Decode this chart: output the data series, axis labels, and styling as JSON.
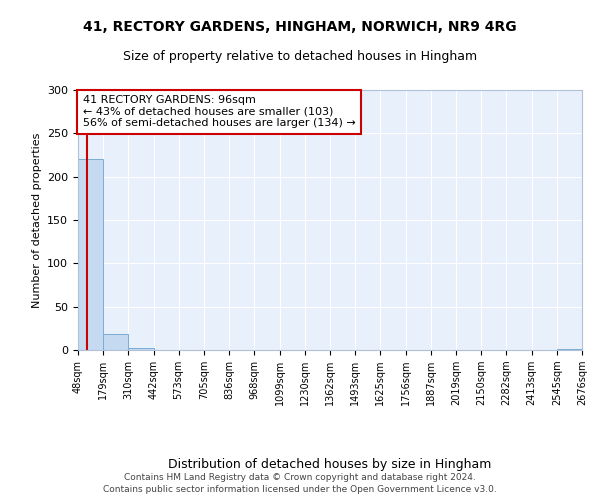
{
  "title_line1": "41, RECTORY GARDENS, HINGHAM, NORWICH, NR9 4RG",
  "title_line2": "Size of property relative to detached houses in Hingham",
  "xlabel": "Distribution of detached houses by size in Hingham",
  "ylabel": "Number of detached properties",
  "bin_labels": [
    "48sqm",
    "179sqm",
    "310sqm",
    "442sqm",
    "573sqm",
    "705sqm",
    "836sqm",
    "968sqm",
    "1099sqm",
    "1230sqm",
    "1362sqm",
    "1493sqm",
    "1625sqm",
    "1756sqm",
    "1887sqm",
    "2019sqm",
    "2150sqm",
    "2282sqm",
    "2413sqm",
    "2545sqm",
    "2676sqm"
  ],
  "bar_values": [
    220,
    18,
    2,
    0,
    0,
    0,
    0,
    0,
    0,
    0,
    0,
    0,
    0,
    0,
    0,
    0,
    0,
    0,
    0,
    1
  ],
  "bar_color": "#c5d9f0",
  "bar_edgecolor": "#7aadd4",
  "property_size": 96,
  "vline_color": "#cc0000",
  "annotation_text": "41 RECTORY GARDENS: 96sqm\n← 43% of detached houses are smaller (103)\n56% of semi-detached houses are larger (134) →",
  "annotation_box_facecolor": "#ffffff",
  "annotation_box_edgecolor": "#cc0000",
  "ylim": [
    0,
    300
  ],
  "yticks": [
    0,
    50,
    100,
    150,
    200,
    250,
    300
  ],
  "footer_line1": "Contains HM Land Registry data © Crown copyright and database right 2024.",
  "footer_line2": "Contains public sector information licensed under the Open Government Licence v3.0.",
  "plot_background": "#e8f0fb",
  "grid_color": "#ffffff"
}
